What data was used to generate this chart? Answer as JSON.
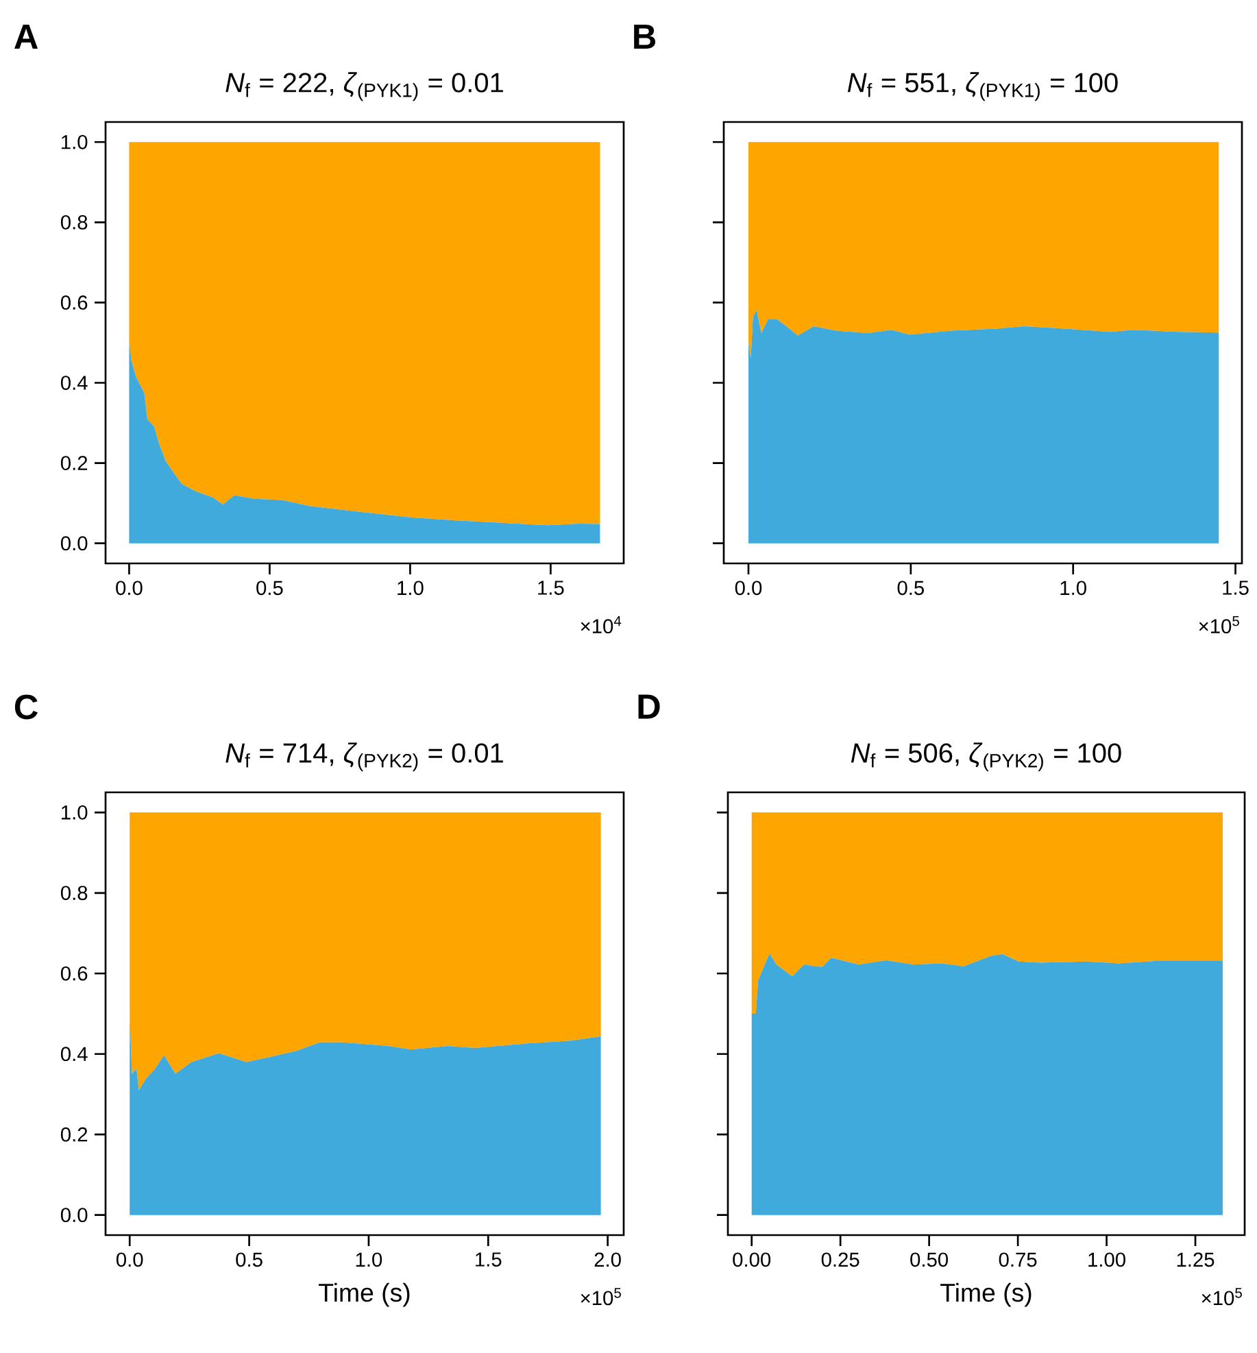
{
  "chart_data": [
    {
      "type": "area",
      "stacked": true,
      "title": "*N*$_{f}$ = 222, *ζ*$_{(PYK1)}$ = 0.01",
      "annotations": [
        "A",
        "×10$^{4}$"
      ],
      "x": [
        0,
        0.0081,
        0.0244,
        0.0537,
        0.065,
        0.0895,
        0.1057,
        0.1301,
        0.1546,
        0.1871,
        0.2359,
        0.299,
        0.3335,
        0.3742,
        0.4474,
        0.545,
        0.6426,
        0.8053,
        1.0005,
        1.1632,
        1.3259,
        1.4886,
        1.6025,
        1.6757
      ],
      "series": [
        {
          "color": "#41aadd",
          "values": [
            0.5,
            0.455,
            0.415,
            0.375,
            0.31,
            0.29,
            0.25,
            0.205,
            0.18,
            0.148,
            0.13,
            0.114,
            0.097,
            0.12,
            0.111,
            0.108,
            0.093,
            0.08,
            0.065,
            0.057,
            0.051,
            0.045,
            0.049,
            0.048
          ]
        },
        {
          "color": "#ffa500",
          "values": [
            0.5,
            0.545,
            0.585,
            0.625,
            0.69,
            0.71,
            0.75,
            0.795,
            0.82,
            0.852,
            0.87,
            0.886,
            0.903,
            0.88,
            0.889,
            0.892,
            0.907,
            0.92,
            0.935,
            0.943,
            0.949,
            0.955,
            0.951,
            0.952
          ]
        }
      ],
      "xlim": [
        -0.084,
        1.76
      ],
      "ylim": [
        -0.05,
        1.05
      ],
      "xticks": [
        {
          "value": 0,
          "label": "0.0"
        },
        0.5,
        {
          "value": 1,
          "label": "1.0"
        },
        1.5
      ],
      "yticks": [
        {
          "value": 0,
          "label": "0.0"
        },
        0.2,
        0.4,
        0.6,
        0.8,
        {
          "value": 1,
          "label": "1.0"
        }
      ]
    },
    {
      "type": "area",
      "stacked": true,
      "title": "*N*$_{f}$ = 551, *ζ*$_{(PYK1)}$ = 100",
      "annotations": [
        "B",
        "×10$^{5}$"
      ],
      "tick_labels": "x",
      "x": [
        0,
        0.007,
        0.014,
        0.0253,
        0.0394,
        0.0605,
        0.0886,
        0.1167,
        0.1519,
        0.2011,
        0.2714,
        0.37,
        0.44,
        0.4965,
        0.623,
        0.7637,
        0.8481,
        0.9747,
        1.1153,
        1.1857,
        1.3263,
        1.4487
      ],
      "series": [
        {
          "color": "#41aadd",
          "values": [
            0.501,
            0.461,
            0.564,
            0.582,
            0.524,
            0.558,
            0.558,
            0.541,
            0.518,
            0.541,
            0.53,
            0.524,
            0.532,
            0.52,
            0.53,
            0.535,
            0.541,
            0.535,
            0.527,
            0.532,
            0.527,
            0.525
          ]
        },
        {
          "color": "#ffa500",
          "values": [
            0.499,
            0.539,
            0.436,
            0.418,
            0.476,
            0.442,
            0.442,
            0.459,
            0.482,
            0.459,
            0.47,
            0.476,
            0.468,
            0.48,
            0.47,
            0.465,
            0.459,
            0.465,
            0.473,
            0.468,
            0.473,
            0.475
          ]
        }
      ],
      "xlim": [
        -0.076,
        1.52
      ],
      "ylim": [
        -0.05,
        1.05
      ],
      "xticks": [
        {
          "value": 0,
          "label": "0.0"
        },
        0.5,
        {
          "value": 1,
          "label": "1.0"
        },
        1.5
      ],
      "yticks": [
        {
          "value": 0,
          "label": null
        },
        {
          "value": 0.2,
          "label": null
        },
        {
          "value": 0.4,
          "label": null
        },
        {
          "value": 0.6,
          "label": null
        },
        {
          "value": 0.8,
          "label": null
        },
        {
          "value": 1,
          "label": null
        }
      ]
    },
    {
      "type": "area",
      "stacked": true,
      "title": "*N*$_{f}$ = 714, *ζ*$_{(PYK2)}$ = 0.01",
      "xlabel": "Time (s)",
      "annotations": [
        "C",
        "×10$^{5}$"
      ],
      "x": [
        0,
        0.00957,
        0.0287,
        0.0383,
        0.067,
        0.1053,
        0.1435,
        0.1914,
        0.2584,
        0.3732,
        0.488,
        0.6029,
        0.6986,
        0.7943,
        0.89,
        1.0813,
        1.177,
        1.3301,
        1.445,
        1.6555,
        1.8469,
        1.9713
      ],
      "series": [
        {
          "color": "#41aadd",
          "values": [
            0.499,
            0.351,
            0.363,
            0.31,
            0.338,
            0.363,
            0.397,
            0.351,
            0.38,
            0.402,
            0.38,
            0.395,
            0.408,
            0.429,
            0.429,
            0.42,
            0.411,
            0.42,
            0.415,
            0.426,
            0.433,
            0.444
          ]
        },
        {
          "color": "#ffa500",
          "values": [
            0.501,
            0.649,
            0.637,
            0.69,
            0.662,
            0.637,
            0.603,
            0.649,
            0.62,
            0.598,
            0.62,
            0.605,
            0.592,
            0.571,
            0.571,
            0.58,
            0.589,
            0.58,
            0.585,
            0.574,
            0.567,
            0.556
          ]
        }
      ],
      "xlim": [
        -0.101,
        2.067
      ],
      "ylim": [
        -0.05,
        1.05
      ],
      "xticks": [
        {
          "value": 0,
          "label": "0.0"
        },
        0.5,
        {
          "value": 1,
          "label": "1.0"
        },
        1.5,
        {
          "value": 2,
          "label": "2.0"
        }
      ],
      "yticks": [
        {
          "value": 0,
          "label": "0.0"
        },
        0.2,
        0.4,
        0.6,
        0.8,
        {
          "value": 1,
          "label": "1.0"
        }
      ]
    },
    {
      "type": "area",
      "stacked": true,
      "title": "*N*$_{f}$ = 506, *ζ*$_{(PYK2)}$ = 100",
      "xlabel": "Time (s)",
      "annotations": [
        "D",
        "×10$^{5}$"
      ],
      "tick_labels": "x",
      "x": [
        0,
        0.0116,
        0.018,
        0.0309,
        0.0502,
        0.0695,
        0.1146,
        0.1468,
        0.1983,
        0.224,
        0.3012,
        0.3785,
        0.4557,
        0.533,
        0.5973,
        0.6746,
        0.7067,
        0.7518,
        0.8162,
        0.9449,
        1.035,
        1.138,
        1.3272
      ],
      "series": [
        {
          "color": "#41aadd",
          "values": [
            0.5,
            0.5,
            0.582,
            0.61,
            0.65,
            0.622,
            0.593,
            0.622,
            0.616,
            0.639,
            0.622,
            0.633,
            0.622,
            0.625,
            0.618,
            0.644,
            0.648,
            0.63,
            0.627,
            0.63,
            0.625,
            0.631,
            0.631
          ]
        },
        {
          "color": "#ffa500",
          "values": [
            0.5,
            0.5,
            0.418,
            0.39,
            0.35,
            0.378,
            0.407,
            0.378,
            0.384,
            0.361,
            0.378,
            0.367,
            0.378,
            0.375,
            0.382,
            0.356,
            0.352,
            0.37,
            0.373,
            0.37,
            0.375,
            0.369,
            0.369
          ]
        }
      ],
      "xlim": [
        -0.067,
        1.389
      ],
      "ylim": [
        -0.05,
        1.05
      ],
      "xticks": [
        {
          "value": 0,
          "label": "0.00"
        },
        0.25,
        {
          "value": 0.5,
          "label": "0.50"
        },
        0.75,
        {
          "value": 1,
          "label": "1.00"
        },
        1.25
      ],
      "yticks": [
        {
          "value": 0,
          "label": null
        },
        {
          "value": 0.2,
          "label": null
        },
        {
          "value": 0.4,
          "label": null
        },
        {
          "value": 0.6,
          "label": null
        },
        {
          "value": 0.8,
          "label": null
        },
        {
          "value": 1,
          "label": null
        }
      ]
    }
  ]
}
